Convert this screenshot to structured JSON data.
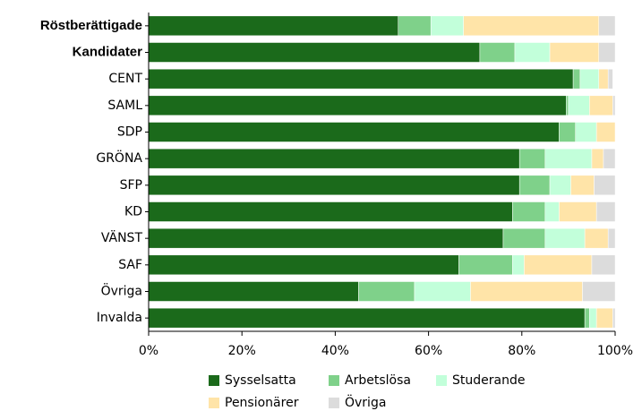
{
  "chart_data": {
    "type": "stacked_barh",
    "categories": [
      "Röstberättigade",
      "Kandidater",
      "CENT",
      "SAML",
      "SDP",
      "GRÖNA",
      "SFP",
      "KD",
      "VÄNST",
      "SAF",
      "Övriga",
      "Invalda"
    ],
    "series": [
      {
        "name": "Sysselsatta",
        "color": "#1b6a1b",
        "values": [
          53.5,
          71,
          91,
          89.5,
          88,
          79.5,
          79.5,
          78,
          76,
          66.5,
          45,
          93.5
        ]
      },
      {
        "name": "Arbetslösa",
        "color": "#7fd18a",
        "values": [
          7,
          7.5,
          1.5,
          0.5,
          3.5,
          5.5,
          6.5,
          7,
          9,
          11.5,
          12,
          1
        ]
      },
      {
        "name": "Studerande",
        "color": "#c2ffda",
        "values": [
          7,
          7.5,
          4,
          4.5,
          4.5,
          10,
          4.5,
          3,
          8.5,
          2.5,
          12,
          1.5
        ]
      },
      {
        "name": "Pensionärer",
        "color": "#ffe4a8",
        "values": [
          29,
          10.5,
          2,
          5,
          4,
          2.5,
          5,
          8,
          5,
          14.5,
          24,
          3.5
        ]
      },
      {
        "name": "Övriga",
        "color": "#dcdcdc",
        "values": [
          3.5,
          3.5,
          1,
          0.5,
          0,
          2.5,
          4.5,
          4,
          1.5,
          5,
          7,
          0.5
        ]
      }
    ],
    "xlim": [
      0,
      100
    ],
    "xticks": [
      {
        "value": 0,
        "label": "0%"
      },
      {
        "value": 20,
        "label": "20%"
      },
      {
        "value": 40,
        "label": "40%"
      },
      {
        "value": 60,
        "label": "60%"
      },
      {
        "value": 80,
        "label": "80%"
      },
      {
        "value": 100,
        "label": "100%"
      }
    ]
  }
}
